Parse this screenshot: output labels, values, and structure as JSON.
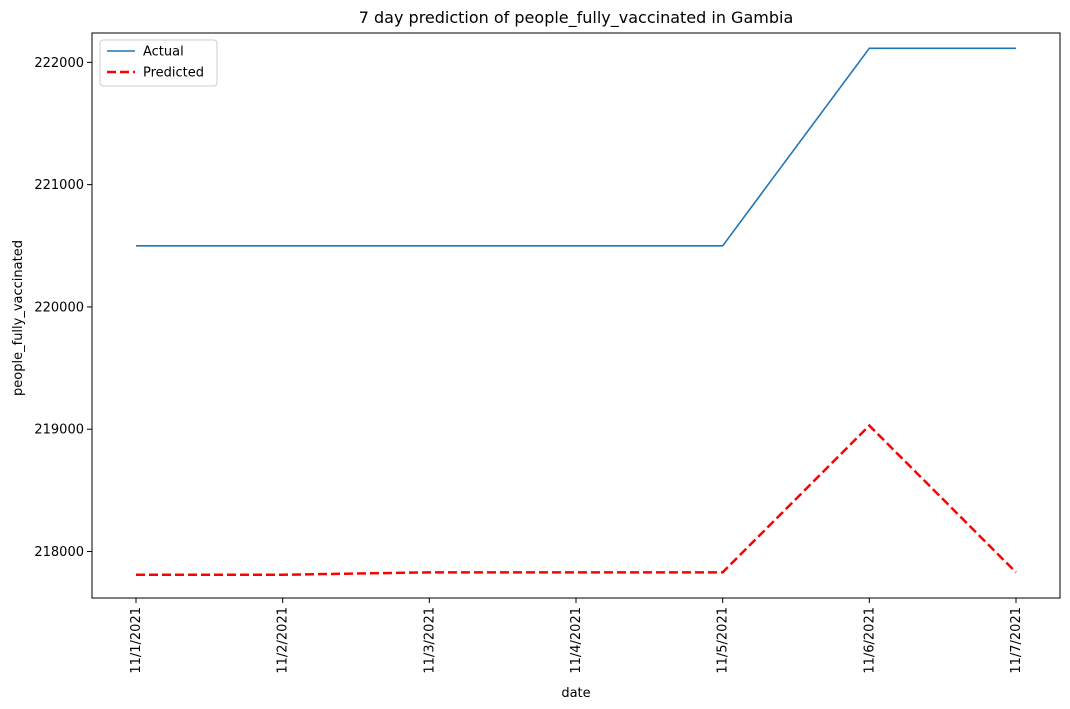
{
  "chart_data": {
    "type": "line",
    "title": "7 day prediction of people_fully_vaccinated in Gambia",
    "xlabel": "date",
    "ylabel": "people_fully_vaccinated",
    "categories": [
      "11/1/2021",
      "11/2/2021",
      "11/3/2021",
      "11/4/2021",
      "11/5/2021",
      "11/6/2021",
      "11/7/2021"
    ],
    "ylim": [
      217620,
      222240
    ],
    "yticks": [
      218000,
      219000,
      220000,
      221000,
      222000
    ],
    "grid": false,
    "legend_position": "top-left",
    "series": [
      {
        "name": "Actual",
        "color": "#1f77b4",
        "style": "solid",
        "values": [
          220500,
          220500,
          220500,
          220500,
          220500,
          222115,
          222115
        ]
      },
      {
        "name": "Predicted",
        "color": "#ff0000",
        "style": "dashed",
        "values": [
          217810,
          217810,
          217830,
          217830,
          217830,
          219030,
          217830
        ]
      }
    ]
  }
}
